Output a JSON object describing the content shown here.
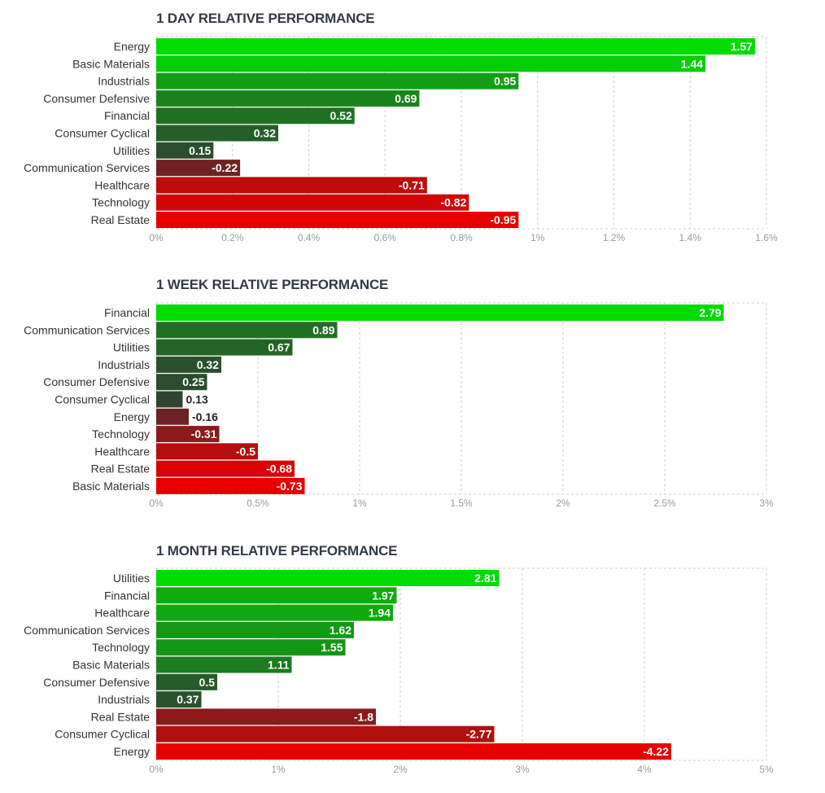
{
  "colors": {
    "grid": "#cfcfcf",
    "tick": "#9a9a9a",
    "label": "#333333",
    "title": "#333b46"
  },
  "chart_data": [
    {
      "type": "bar",
      "orientation": "horizontal",
      "title": "1 DAY RELATIVE PERFORMANCE",
      "categories": [
        "Energy",
        "Basic Materials",
        "Industrials",
        "Consumer Defensive",
        "Financial",
        "Consumer Cyclical",
        "Utilities",
        "Communication Services",
        "Healthcare",
        "Technology",
        "Real Estate"
      ],
      "values": [
        1.57,
        1.44,
        0.95,
        0.69,
        0.52,
        0.32,
        0.15,
        -0.22,
        -0.71,
        -0.82,
        -0.95
      ],
      "value_labels": [
        "1.57",
        "1.44",
        "0.95",
        "0.69",
        "0.52",
        "0.32",
        "0.15",
        "-0.22",
        "-0.71",
        "-0.82",
        "-0.95"
      ],
      "xlim": [
        0,
        1.6
      ],
      "ticks": [
        "0%",
        "0.2%",
        "0.4%",
        "0.6%",
        "0.8%",
        "1%",
        "1.2%",
        "1.4%",
        "1.6%"
      ],
      "tick_values": [
        0,
        0.2,
        0.4,
        0.6,
        0.8,
        1.0,
        1.2,
        1.4,
        1.6
      ],
      "grid": true
    },
    {
      "type": "bar",
      "orientation": "horizontal",
      "title": "1 WEEK RELATIVE PERFORMANCE",
      "categories": [
        "Financial",
        "Communication Services",
        "Utilities",
        "Industrials",
        "Consumer Defensive",
        "Consumer Cyclical",
        "Energy",
        "Technology",
        "Healthcare",
        "Real Estate",
        "Basic Materials"
      ],
      "values": [
        2.79,
        0.89,
        0.67,
        0.32,
        0.25,
        0.13,
        -0.16,
        -0.31,
        -0.5,
        -0.68,
        -0.73
      ],
      "value_labels": [
        "2.79",
        "0.89",
        "0.67",
        "0.32",
        "0.25",
        "0.13",
        "-0.16",
        "-0.31",
        "-0.5",
        "-0.68",
        "-0.73"
      ],
      "xlim": [
        0,
        3
      ],
      "ticks": [
        "0%",
        "0.5%",
        "1%",
        "1.5%",
        "2%",
        "2.5%",
        "3%"
      ],
      "tick_values": [
        0,
        0.5,
        1.0,
        1.5,
        2.0,
        2.5,
        3.0
      ],
      "grid": true
    },
    {
      "type": "bar",
      "orientation": "horizontal",
      "title": "1 MONTH RELATIVE PERFORMANCE",
      "categories": [
        "Utilities",
        "Financial",
        "Healthcare",
        "Communication Services",
        "Technology",
        "Basic Materials",
        "Consumer Defensive",
        "Industrials",
        "Real Estate",
        "Consumer Cyclical",
        "Energy"
      ],
      "values": [
        2.81,
        1.97,
        1.94,
        1.62,
        1.55,
        1.11,
        0.5,
        0.37,
        -1.8,
        -2.77,
        -4.22
      ],
      "value_labels": [
        "2.81",
        "1.97",
        "1.94",
        "1.62",
        "1.55",
        "1.11",
        "0.5",
        "0.37",
        "-1.8",
        "-2.77",
        "-4.22"
      ],
      "xlim": [
        0,
        5
      ],
      "ticks": [
        "0%",
        "1%",
        "2%",
        "3%",
        "4%",
        "5%"
      ],
      "tick_values": [
        0,
        1,
        2,
        3,
        4,
        5
      ],
      "grid": true
    }
  ]
}
